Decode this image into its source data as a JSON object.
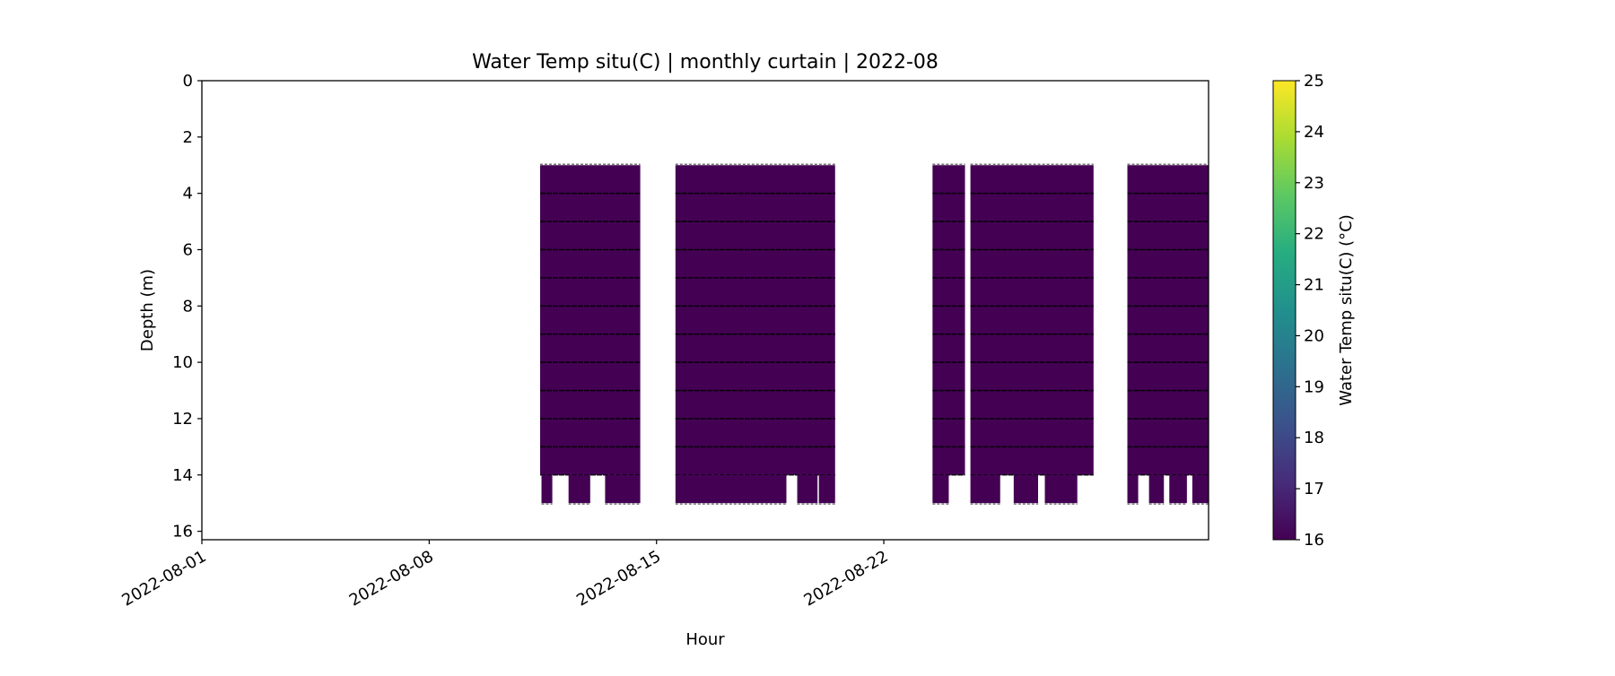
{
  "chart_data": {
    "type": "heatmap",
    "title": "Water Temp situ(C) | monthly curtain | 2022-08",
    "xlabel": "Hour",
    "ylabel": "Depth (m)",
    "x_tick_labels": [
      "2022-08-01",
      "2022-08-08",
      "2022-08-15",
      "2022-08-22"
    ],
    "x_tick_dates": [
      "2022-08-01",
      "2022-08-08",
      "2022-08-15",
      "2022-08-22"
    ],
    "xlim": [
      "2022-08-01",
      "2022-09-01"
    ],
    "y_ticks": [
      0,
      2,
      4,
      6,
      8,
      10,
      12,
      14,
      16
    ],
    "ylim": [
      0,
      16.3
    ],
    "y_inverted": true,
    "colorbar": {
      "label": "Water Temp situ(C) (°C)",
      "ticks": [
        16,
        17,
        18,
        19,
        20,
        21,
        22,
        23,
        24,
        25
      ],
      "range": [
        16,
        25
      ],
      "colormap": "viridis"
    },
    "fill_color": "#440154",
    "data_depth_range": [
      3,
      15
    ],
    "sensor_depths": [
      4,
      5,
      6,
      7,
      8,
      9,
      10,
      11,
      12,
      13,
      14
    ],
    "data_segments": [
      {
        "start": "2022-08-11 10:00",
        "end": "2022-08-14 12:00",
        "top": 3.0,
        "bottom": 14.0,
        "value": 16.1
      },
      {
        "start": "2022-08-15 14:00",
        "end": "2022-08-20 12:00",
        "top": 3.0,
        "bottom": 14.0,
        "value": 16.2
      },
      {
        "start": "2022-08-23 12:00",
        "end": "2022-08-24 12:00",
        "top": 3.0,
        "bottom": 14.0,
        "value": 16.1
      },
      {
        "start": "2022-08-24 16:00",
        "end": "2022-08-28 11:00",
        "top": 3.0,
        "bottom": 14.0,
        "value": 16.1
      },
      {
        "start": "2022-08-29 12:00",
        "end": "2022-09-01 00:00",
        "top": 3.0,
        "bottom": 14.0,
        "value": 16.2
      }
    ],
    "lower_bins": [
      {
        "start": "2022-08-11 11:00",
        "end": "2022-08-11 19:00",
        "top": 14.0,
        "bottom": 15.0
      },
      {
        "start": "2022-08-12 07:00",
        "end": "2022-08-12 23:00",
        "top": 14.0,
        "bottom": 15.0
      },
      {
        "start": "2022-08-13 10:00",
        "end": "2022-08-14 12:00",
        "top": 14.0,
        "bottom": 15.0
      },
      {
        "start": "2022-08-15 14:00",
        "end": "2022-08-19 00:00",
        "top": 14.0,
        "bottom": 15.0
      },
      {
        "start": "2022-08-19 08:00",
        "end": "2022-08-19 23:00",
        "top": 14.0,
        "bottom": 15.0
      },
      {
        "start": "2022-08-20 00:00",
        "end": "2022-08-20 12:00",
        "top": 14.0,
        "bottom": 15.0
      },
      {
        "start": "2022-08-23 12:00",
        "end": "2022-08-24 00:00",
        "top": 14.0,
        "bottom": 15.0
      },
      {
        "start": "2022-08-24 16:00",
        "end": "2022-08-25 14:00",
        "top": 14.0,
        "bottom": 15.0
      },
      {
        "start": "2022-08-26 00:00",
        "end": "2022-08-26 18:00",
        "top": 14.0,
        "bottom": 15.0
      },
      {
        "start": "2022-08-26 23:00",
        "end": "2022-08-27 23:00",
        "top": 14.0,
        "bottom": 15.0
      },
      {
        "start": "2022-08-29 12:00",
        "end": "2022-08-29 20:00",
        "top": 14.0,
        "bottom": 15.0
      },
      {
        "start": "2022-08-30 04:00",
        "end": "2022-08-30 15:00",
        "top": 14.0,
        "bottom": 15.0
      },
      {
        "start": "2022-08-30 19:00",
        "end": "2022-08-31 08:00",
        "top": 14.0,
        "bottom": 15.0
      },
      {
        "start": "2022-08-31 12:00",
        "end": "2022-09-01 00:00",
        "top": 14.0,
        "bottom": 15.0
      }
    ]
  }
}
